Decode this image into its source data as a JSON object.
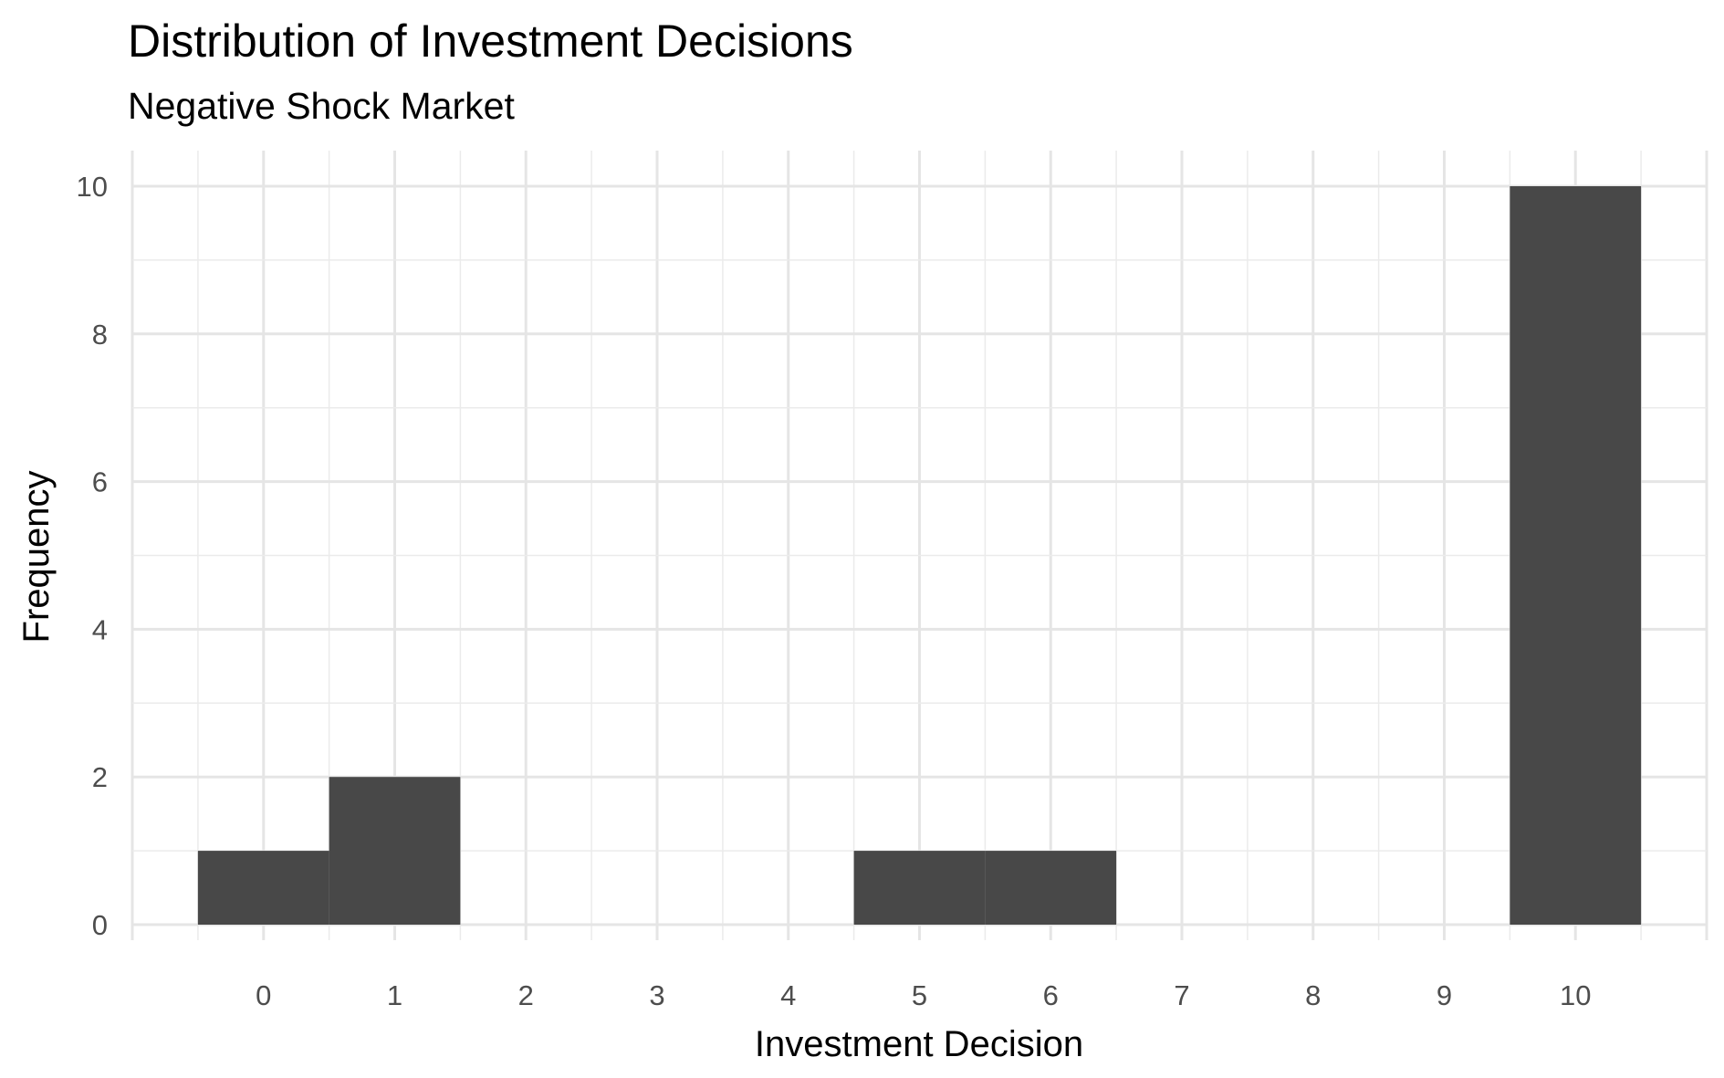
{
  "chart_data": {
    "type": "bar",
    "title": "Distribution of Investment Decisions",
    "subtitle": "Negative Shock Market",
    "xlabel": "Investment Decision",
    "ylabel": "Frequency",
    "bins": [
      {
        "x": 0,
        "count": 1
      },
      {
        "x": 1,
        "count": 2
      },
      {
        "x": 5,
        "count": 1
      },
      {
        "x": 6,
        "count": 1
      },
      {
        "x": 10,
        "count": 10
      }
    ],
    "bin_width": 1,
    "x_ticks": [
      "0",
      "1",
      "2",
      "3",
      "4",
      "5",
      "6",
      "7",
      "8",
      "9",
      "10"
    ],
    "y_ticks": [
      "0",
      "2",
      "4",
      "6",
      "8",
      "10"
    ],
    "xlim": [
      -1,
      11
    ],
    "ylim": [
      0,
      10
    ],
    "bar_color": "#484848",
    "grid": true,
    "legend": "none"
  }
}
